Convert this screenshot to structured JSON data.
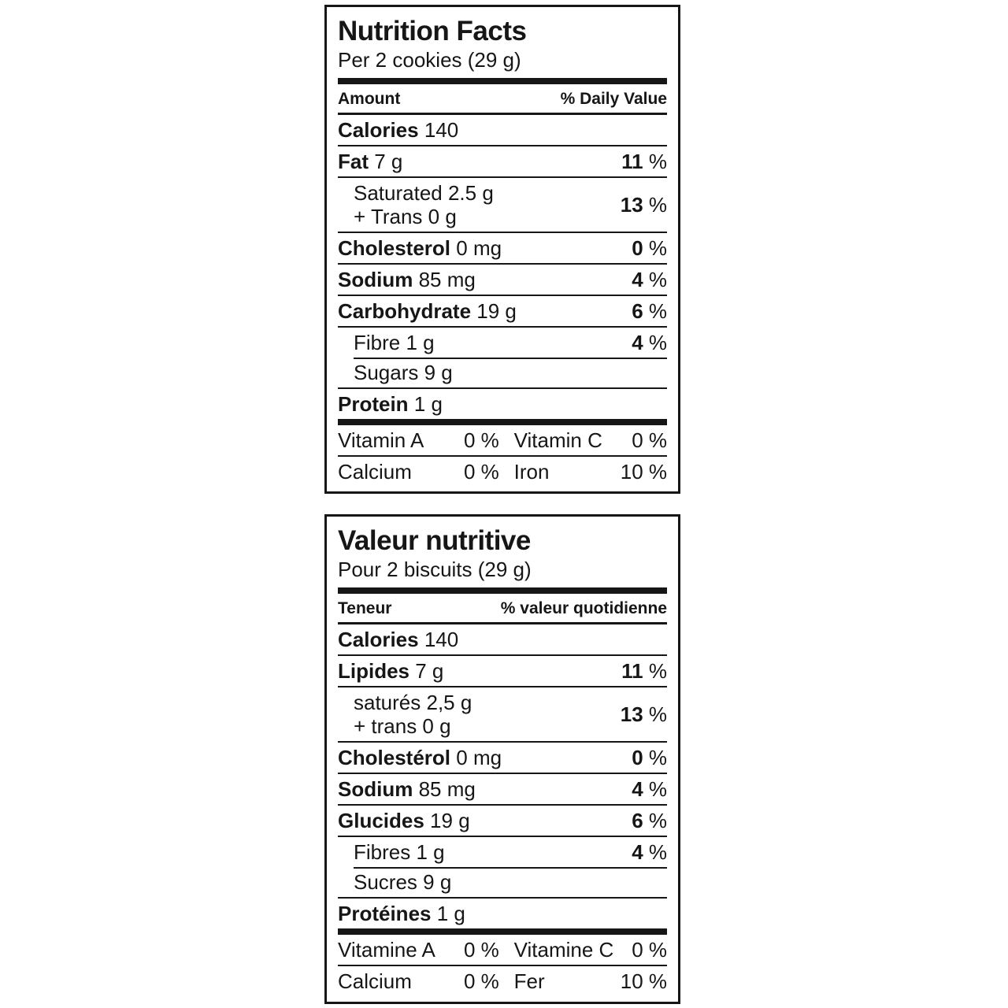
{
  "canvas": {
    "background": "#ffffff",
    "text_color": "#161616"
  },
  "labels": [
    {
      "id": "nutrition-facts-label-en",
      "title": "Nutrition Facts",
      "serving": "Per 2 cookies (29 g)",
      "columns": {
        "left": "Amount",
        "right": "% Daily Value"
      },
      "percent_sign": "%",
      "nutrients": [
        {
          "label": "Calories",
          "amount": "140",
          "dv": null,
          "emphasis": true
        },
        {
          "label": "Fat",
          "amount": "7 g",
          "dv": "11",
          "emphasis": true
        },
        {
          "lines": [
            "Saturated 2.5 g",
            "+ Trans 0 g"
          ],
          "dv": "13",
          "indent": true
        },
        {
          "label": "Cholesterol",
          "amount": "0 mg",
          "dv": "0",
          "emphasis": true
        },
        {
          "label": "Sodium",
          "amount": "85 mg",
          "dv": "4",
          "emphasis": true
        },
        {
          "label": "Carbohydrate",
          "amount": "19 g",
          "dv": "6",
          "emphasis": true
        },
        {
          "label": "Fibre",
          "amount": "1 g",
          "dv": "4",
          "indent": true
        },
        {
          "label": "Sugars",
          "amount": "9 g",
          "dv": null,
          "indent": true,
          "separator_indented": true
        },
        {
          "label": "Protein",
          "amount": "1 g",
          "dv": null,
          "emphasis": true
        }
      ],
      "micronutrients": [
        [
          {
            "label": "Vitamin A",
            "value": "0 %"
          },
          {
            "label": "Vitamin C",
            "value": "0 %"
          }
        ],
        [
          {
            "label": "Calcium",
            "value": "0 %"
          },
          {
            "label": "Iron",
            "value": "10 %"
          }
        ]
      ]
    },
    {
      "id": "valeur-nutritive-label-fr",
      "title": "Valeur nutritive",
      "serving": "Pour 2 biscuits (29 g)",
      "columns": {
        "left": "Teneur",
        "right": "% valeur quotidienne"
      },
      "percent_sign": "%",
      "nutrients": [
        {
          "label": "Calories",
          "amount": "140",
          "dv": null,
          "emphasis": true
        },
        {
          "label": "Lipides",
          "amount": "7 g",
          "dv": "11",
          "emphasis": true
        },
        {
          "lines": [
            "saturés 2,5 g",
            "+ trans 0 g"
          ],
          "dv": "13",
          "indent": true
        },
        {
          "label": "Cholestérol",
          "amount": "0 mg",
          "dv": "0",
          "emphasis": true
        },
        {
          "label": "Sodium",
          "amount": "85 mg",
          "dv": "4",
          "emphasis": true
        },
        {
          "label": "Glucides",
          "amount": "19 g",
          "dv": "6",
          "emphasis": true
        },
        {
          "label": "Fibres",
          "amount": "1 g",
          "dv": "4",
          "indent": true
        },
        {
          "label": "Sucres",
          "amount": "9 g",
          "dv": null,
          "indent": true,
          "separator_indented": true
        },
        {
          "label": "Protéines",
          "amount": "1 g",
          "dv": null,
          "emphasis": true
        }
      ],
      "micronutrients": [
        [
          {
            "label": "Vitamine A",
            "value": "0 %"
          },
          {
            "label": "Vitamine C",
            "value": "0 %"
          }
        ],
        [
          {
            "label": "Calcium",
            "value": "0 %"
          },
          {
            "label": "Fer",
            "value": "10 %"
          }
        ]
      ]
    }
  ]
}
